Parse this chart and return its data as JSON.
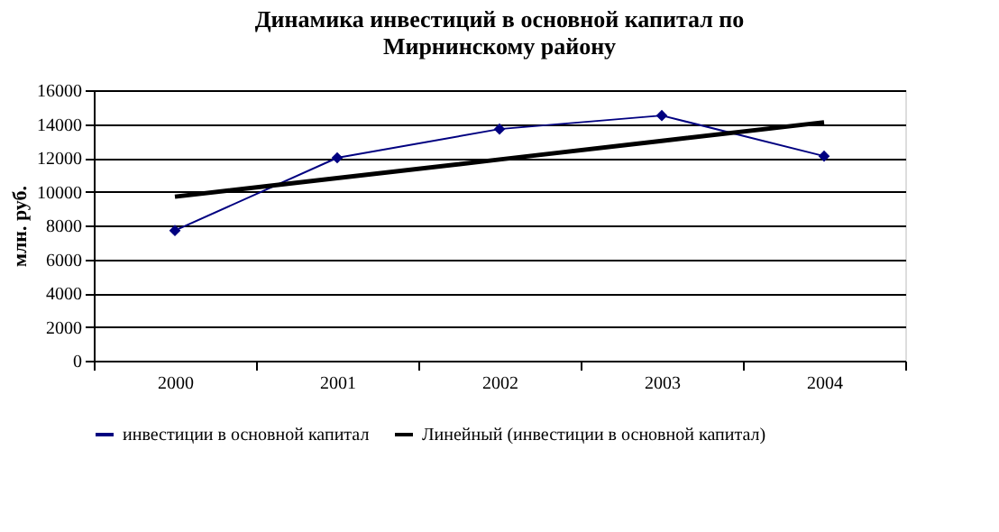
{
  "chart_data": {
    "type": "line",
    "title": [
      "Динамика инвестиций в основной капитал по",
      "Мирнинскому району"
    ],
    "ylabel": "млн. руб.",
    "categories": [
      "2000",
      "2001",
      "2002",
      "2003",
      "2004"
    ],
    "series": [
      {
        "name": "инвестиции в основной капитал",
        "color": "#000080",
        "marker": "diamond",
        "values": [
          7700,
          12000,
          13700,
          14500,
          12100
        ]
      },
      {
        "name": "Линейный (инвестиции в основной капитал)",
        "type": "line",
        "color": "#000000",
        "marker": "none",
        "values": [
          9700,
          10800,
          11900,
          13000,
          14100
        ]
      }
    ],
    "ylim": [
      0,
      16000
    ],
    "yticks": [
      0,
      2000,
      4000,
      6000,
      8000,
      10000,
      12000,
      14000,
      16000
    ],
    "grid": "y",
    "legend": "bottom",
    "line_style": "solid"
  }
}
